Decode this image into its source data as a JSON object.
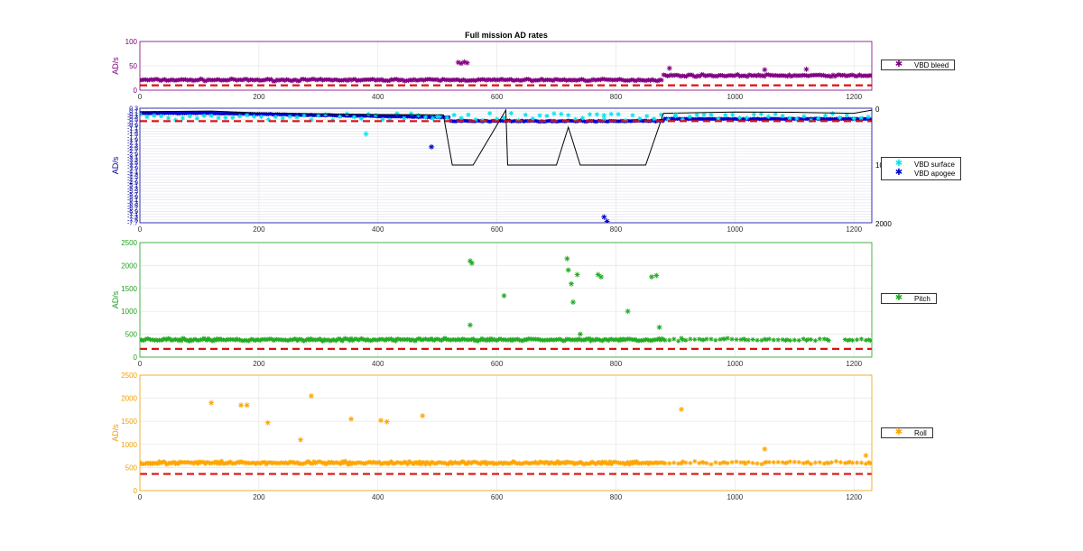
{
  "figure_title": "Full mission AD rates",
  "chart_data": [
    {
      "type": "scatter",
      "ylabel": "AD/s",
      "color": "#800080",
      "xlim": [
        0,
        1230
      ],
      "ylim": [
        0,
        100
      ],
      "xticks": [
        0,
        200,
        400,
        600,
        800,
        1000,
        1200
      ],
      "yticks": [
        0,
        50,
        100
      ],
      "grid": true,
      "legend_position": "right",
      "threshold": 10,
      "series": [
        {
          "name": "VBD bleed",
          "marker": "*",
          "color": "#800080",
          "segments": [
            [
              0,
              880,
              21
            ],
            [
              880,
              1230,
              30
            ]
          ],
          "outliers": [
            [
              535,
              57
            ],
            [
              540,
              55
            ],
            [
              545,
              58
            ],
            [
              550,
              56
            ],
            [
              890,
              45
            ],
            [
              1050,
              42
            ],
            [
              1120,
              43
            ]
          ]
        }
      ]
    },
    {
      "type": "scatter",
      "ylabel": "AD/s",
      "color": "#0000a0",
      "xlim": [
        0,
        1230
      ],
      "ylim": [
        -7.7,
        0.3
      ],
      "xticks": [
        0,
        200,
        400,
        600,
        800,
        1000,
        1200
      ],
      "y2ticks": [
        "0",
        "10",
        "2000"
      ],
      "grid": true,
      "legend_position": "right",
      "threshold": -0.6,
      "series": [
        {
          "name": "VBD surface",
          "marker": "*",
          "color": "#00e5ee",
          "outliers": [
            [
              380,
              -1.5
            ],
            [
              500,
              -0.3
            ],
            [
              780,
              -0.2
            ],
            [
              900,
              -0.15
            ]
          ]
        },
        {
          "name": "VBD apogee",
          "marker": "*",
          "color": "#0000cd",
          "outliers": [
            [
              490,
              -2.4
            ],
            [
              780,
              -7.3
            ],
            [
              785,
              -7.6
            ]
          ]
        }
      ],
      "depth_trace": {
        "color": "#000000",
        "range": [
          0,
          2000
        ],
        "points": [
          [
            0,
            180
          ],
          [
            120,
            150
          ],
          [
            200,
            280
          ],
          [
            400,
            400
          ],
          [
            510,
            420
          ],
          [
            525,
            1980
          ],
          [
            560,
            1990
          ],
          [
            620,
            2000
          ],
          [
            700,
            1990
          ],
          [
            720,
            900
          ],
          [
            740,
            1980
          ],
          [
            800,
            1990
          ],
          [
            850,
            1990
          ],
          [
            880,
            300
          ],
          [
            1000,
            250
          ],
          [
            1100,
            260
          ],
          [
            1200,
            300
          ],
          [
            1230,
            120
          ]
        ]
      }
    },
    {
      "type": "scatter",
      "ylabel": "AD/s",
      "color": "#1fa01f",
      "xlim": [
        0,
        1230
      ],
      "ylim": [
        0,
        2500
      ],
      "xticks": [
        0,
        200,
        400,
        600,
        800,
        1000,
        1200
      ],
      "yticks": [
        0,
        500,
        1000,
        1500,
        2000,
        2500
      ],
      "grid": true,
      "legend_position": "right",
      "threshold": 180,
      "series": [
        {
          "name": "Pitch",
          "marker": "*",
          "color": "#22aa22",
          "outliers": [
            [
              555,
              2100
            ],
            [
              558,
              2050
            ],
            [
              612,
              1340
            ],
            [
              718,
              2150
            ],
            [
              720,
              1900
            ],
            [
              725,
              1600
            ],
            [
              728,
              1200
            ],
            [
              735,
              1800
            ],
            [
              770,
              1800
            ],
            [
              775,
              1750
            ],
            [
              820,
              1000
            ],
            [
              860,
              1750
            ],
            [
              868,
              1780
            ],
            [
              555,
              700
            ],
            [
              740,
              500
            ],
            [
              873,
              650
            ]
          ]
        }
      ]
    },
    {
      "type": "scatter",
      "ylabel": "AD/s",
      "color": "#f0a000",
      "xlim": [
        0,
        1230
      ],
      "ylim": [
        0,
        2500
      ],
      "xticks": [
        0,
        200,
        400,
        600,
        800,
        1000,
        1200
      ],
      "yticks": [
        0,
        500,
        1000,
        1500,
        2000,
        2500
      ],
      "grid": true,
      "legend_position": "right",
      "threshold": 360,
      "series": [
        {
          "name": "Roll",
          "marker": "*",
          "color": "#ffa500",
          "outliers": [
            [
              120,
              1900
            ],
            [
              170,
              1850
            ],
            [
              180,
              1850
            ],
            [
              215,
              1470
            ],
            [
              288,
              2050
            ],
            [
              355,
              1550
            ],
            [
              405,
              1520
            ],
            [
              415,
              1490
            ],
            [
              475,
              1620
            ],
            [
              910,
              1760
            ],
            [
              270,
              1100
            ],
            [
              1050,
              900
            ],
            [
              1220,
              760
            ]
          ]
        }
      ]
    }
  ]
}
